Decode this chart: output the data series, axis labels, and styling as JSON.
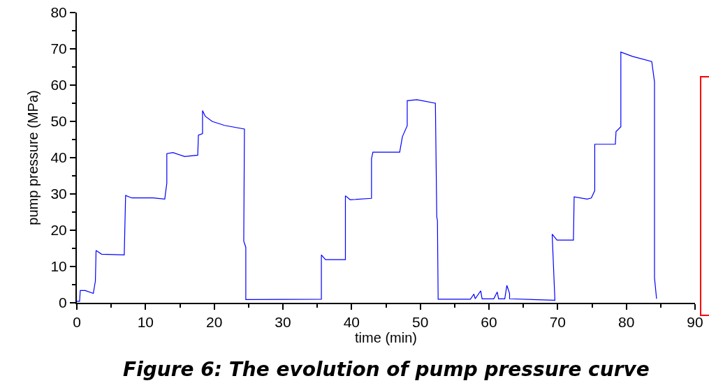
{
  "chart_data": {
    "type": "line",
    "xlabel": "time (min)",
    "ylabel": "pump pressure (MPa)",
    "annotations": [
      "Figure 6: The evolution of pump pressure curve"
    ],
    "series": [
      {
        "color": "#0000ff",
        "x": [
          0,
          0.4,
          0.5,
          1.2,
          2.4,
          2.7,
          2.8,
          3.6,
          6.9,
          7.1,
          8.0,
          11.1,
          12.8,
          13.1,
          13.1,
          14.0,
          15.7,
          17.6,
          17.7,
          18.3,
          18.3,
          18.7,
          19.7,
          21.5,
          24.4,
          24.3,
          24.6,
          24.6,
          35.6,
          35.6,
          36.2,
          39.1,
          39.1,
          39.8,
          42.9,
          42.9,
          43.1,
          47.0,
          47.4,
          48.1,
          48.1,
          49.5,
          52.2,
          52.4,
          52.5,
          52.6,
          57.3,
          57.8,
          58.0,
          58.8,
          59.0,
          60.7,
          61.2,
          61.4,
          62.3,
          62.6,
          63.0,
          63.0,
          69.6,
          69.2,
          69.9,
          72.3,
          72.4,
          74.3,
          74.9,
          75.4,
          75.4,
          78.4,
          78.5,
          79.2,
          79.2,
          80.9,
          83.7,
          84.1,
          84.1,
          84.4
        ],
        "values": [
          0.4,
          0.4,
          3.4,
          3.4,
          2.6,
          6.0,
          14.4,
          13.4,
          13.2,
          29.6,
          28.9,
          28.9,
          28.6,
          33.0,
          41.1,
          41.4,
          40.3,
          40.7,
          46.2,
          46.6,
          53.0,
          51.4,
          50.0,
          48.9,
          47.9,
          17.0,
          15.3,
          0.9,
          1.0,
          13.2,
          11.9,
          11.9,
          29.5,
          28.4,
          28.8,
          39.7,
          41.5,
          41.5,
          45.8,
          48.8,
          55.7,
          56.0,
          55.0,
          23.7,
          22.6,
          1.0,
          1.0,
          2.4,
          1.1,
          3.3,
          1.1,
          1.1,
          3.0,
          1.1,
          1.1,
          4.8,
          2.6,
          1.1,
          0.7,
          18.9,
          17.3,
          17.3,
          29.2,
          28.6,
          28.9,
          30.9,
          43.7,
          43.7,
          47.2,
          48.5,
          69.1,
          67.9,
          66.5,
          60.9,
          6.9,
          1.1
        ]
      }
    ],
    "xlim": [
      0,
      90
    ],
    "xticks": [
      0,
      {
        "value": 5,
        "label": null
      },
      10,
      {
        "value": 15,
        "label": null
      },
      20,
      {
        "value": 25,
        "label": null
      },
      30,
      {
        "value": 35,
        "label": null
      },
      40,
      {
        "value": 45,
        "label": null
      },
      50,
      {
        "value": 55,
        "label": null
      },
      60,
      {
        "value": 65,
        "label": null
      },
      70,
      {
        "value": 75,
        "label": null
      },
      80,
      {
        "value": 85,
        "label": null
      },
      90
    ],
    "ylim": [
      0,
      80
    ],
    "yticks": [
      0,
      {
        "value": 5,
        "label": null
      },
      10,
      {
        "value": 15,
        "label": null
      },
      20,
      {
        "value": 25,
        "label": null
      },
      30,
      {
        "value": 35,
        "label": null
      },
      40,
      {
        "value": 45,
        "label": null
      },
      50,
      {
        "value": 55,
        "label": null
      },
      60,
      {
        "value": 65,
        "label": null
      },
      70,
      {
        "value": 75,
        "label": null
      },
      80
    ],
    "marker": "none",
    "line_style": "solid"
  }
}
